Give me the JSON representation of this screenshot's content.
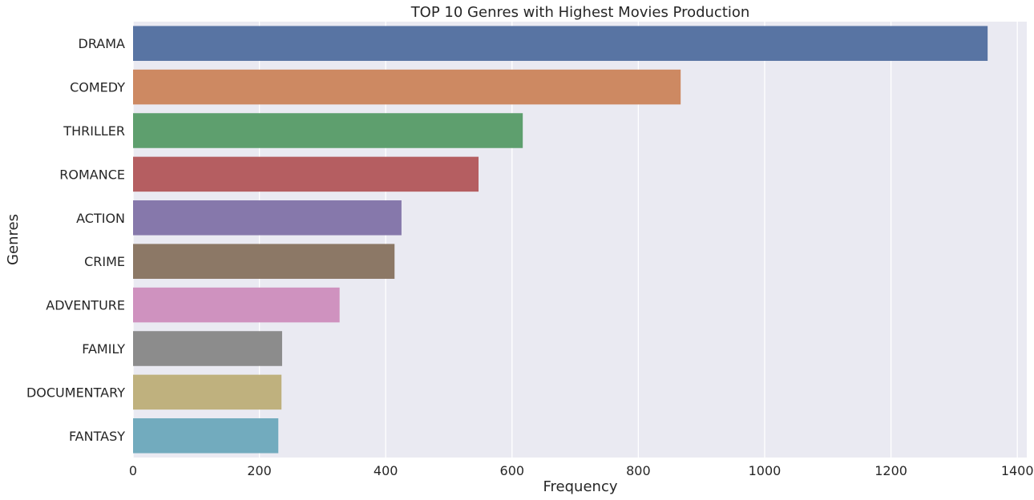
{
  "chart_data": {
    "type": "bar",
    "orientation": "horizontal",
    "title": "TOP 10 Genres with Highest Movies Production",
    "xlabel": "Frequency",
    "ylabel": "Genres",
    "categories": [
      "DRAMA",
      "COMEDY",
      "THRILLER",
      "ROMANCE",
      "ACTION",
      "CRIME",
      "ADVENTURE",
      "FAMILY",
      "DOCUMENTARY",
      "FANTASY"
    ],
    "values": [
      1353,
      867,
      617,
      547,
      425,
      414,
      327,
      236,
      235,
      230
    ],
    "colors": [
      "#5874a3",
      "#cd8962",
      "#5e9f6e",
      "#b55e61",
      "#8678ab",
      "#8c7866",
      "#cf92bf",
      "#8c8c8c",
      "#bfb17e",
      "#72abbe"
    ],
    "xlim": [
      0,
      1415
    ],
    "xticks": [
      0,
      200,
      400,
      600,
      800,
      1000,
      1200,
      1400
    ],
    "grid": true,
    "background": "#eaeaf2"
  }
}
